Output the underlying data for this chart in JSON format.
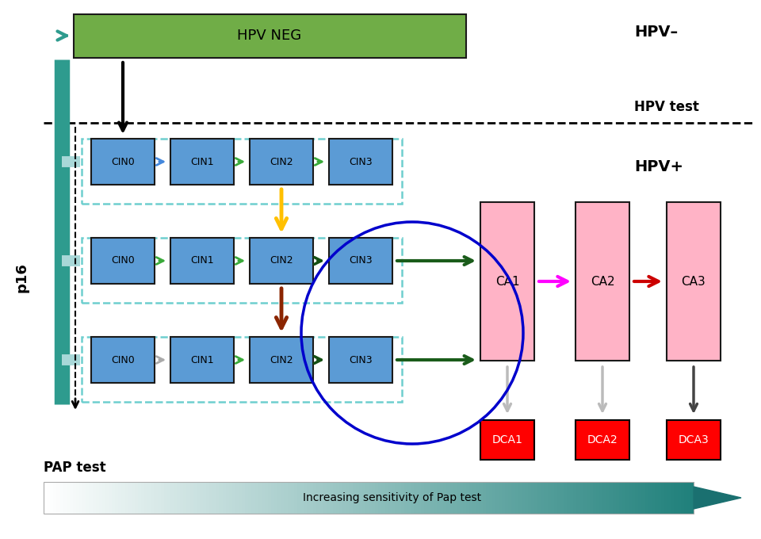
{
  "bg_color": "#ffffff",
  "cin_box_color": "#5b9bd5",
  "cin_box_edgecolor": "#1a1a1a",
  "ca_box_color": "#ffb3c6",
  "ca_box_edgecolor": "#1a1a1a",
  "dca_box_color": "#ff0000",
  "dca_box_edgecolor": "#000000",
  "hpv_neg_color": "#70ad47",
  "hpv_neg_edgecolor": "#1a1a1a",
  "teal_dark": "#2e9b8e",
  "teal_light": "#a8d8d8",
  "dashed_rect_color": "#6ecfcf",
  "green_dark": "#1a5c1a",
  "green_mid": "#3a9a3a",
  "cin_labels": [
    "CIN0",
    "CIN1",
    "CIN2",
    "CIN3"
  ],
  "ca_labels": [
    "CA1",
    "CA2",
    "CA3"
  ],
  "dca_labels": [
    "DCA1",
    "DCA2",
    "DCA3"
  ],
  "title_hpvneg": "HPV–",
  "title_hpvtest": "HPV test",
  "title_hpvpos": "HPV+",
  "label_p16": "p16",
  "label_pap": "PAP test",
  "label_increasing": "Increasing sensitivity of Pap test"
}
